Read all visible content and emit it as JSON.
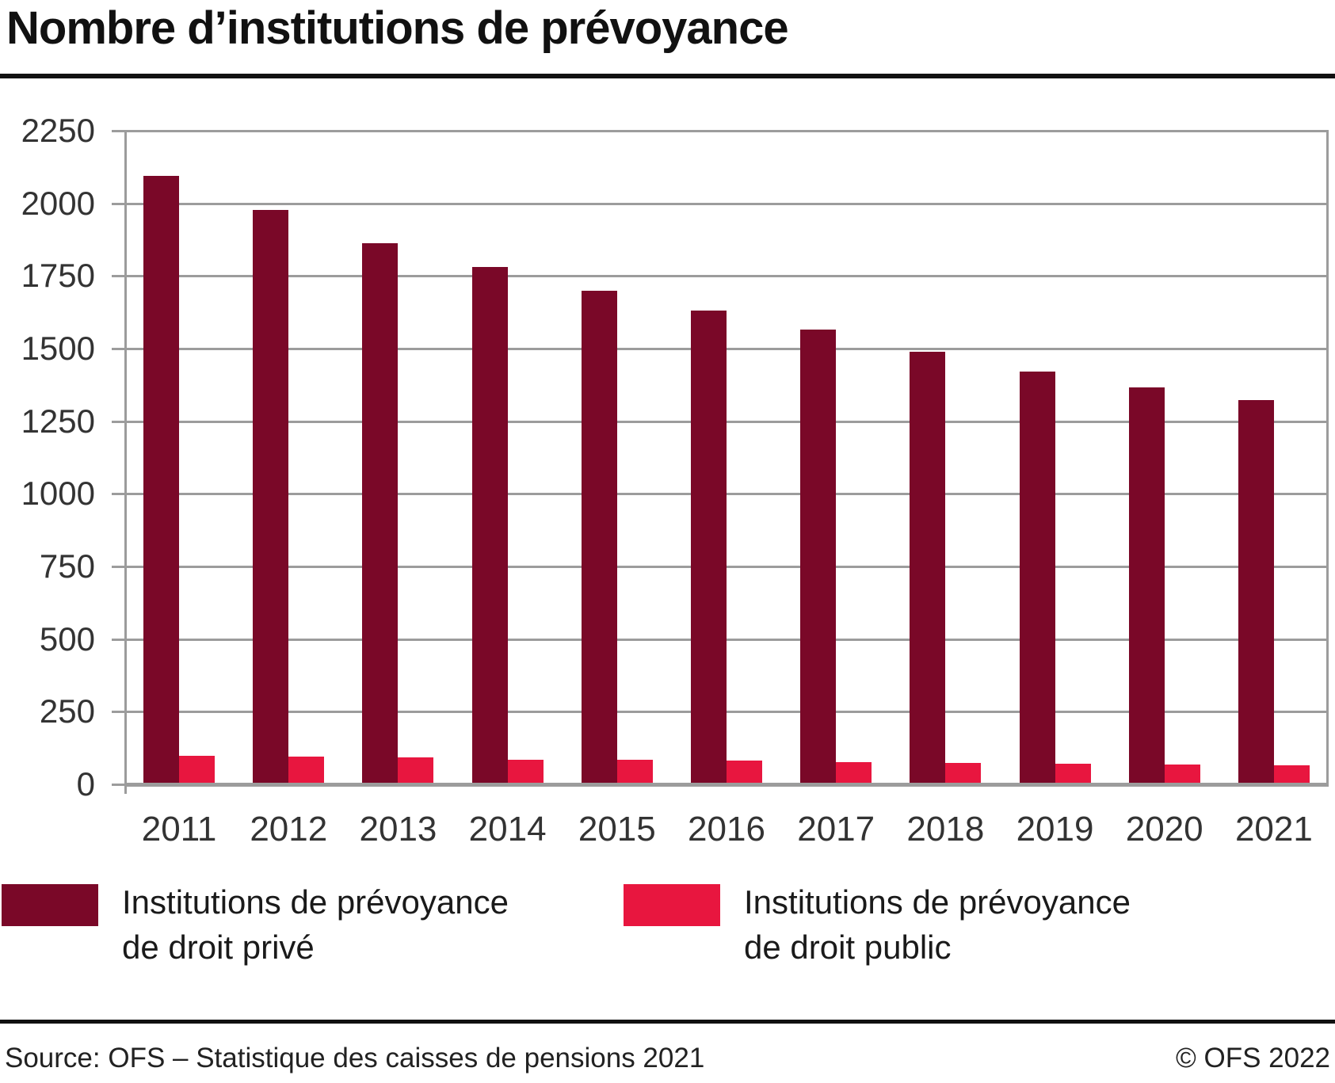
{
  "title": "Nombre d’institutions de prévoyance",
  "chart_data": {
    "type": "bar",
    "title": "Nombre d’institutions de prévoyance",
    "categories": [
      "2011",
      "2012",
      "2013",
      "2014",
      "2015",
      "2016",
      "2017",
      "2018",
      "2019",
      "2020",
      "2021"
    ],
    "series": [
      {
        "name": "Institutions de prévoyance de droit privé",
        "color": "#7a0828",
        "values": [
          2094,
          1978,
          1864,
          1781,
          1698,
          1632,
          1566,
          1489,
          1421,
          1367,
          1324
        ]
      },
      {
        "name": "Institutions de prévoyance de droit public",
        "color": "#e8163f",
        "values": [
          97,
          95,
          93,
          85,
          84,
          81,
          77,
          73,
          70,
          67,
          65
        ]
      }
    ],
    "xlabel": "",
    "ylabel": "",
    "ylim": [
      0,
      2250
    ],
    "yticks": [
      0,
      250,
      500,
      750,
      1000,
      1250,
      1500,
      1750,
      2000,
      2250
    ],
    "grid": true,
    "gridcolor": "#9c9c9c",
    "legend_position": "bottom"
  },
  "legend": {
    "items": [
      {
        "line1": "Institutions de prévoyance",
        "line2": "de droit privé",
        "color": "#7a0828"
      },
      {
        "line1": "Institutions de prévoyance",
        "line2": "de droit public",
        "color": "#e8163f"
      }
    ]
  },
  "footer": {
    "source": "Source: OFS – Statistique des caisses de pensions 2021",
    "copyright": "© OFS 2022"
  },
  "colors": {
    "private_bar": "#7a0828",
    "public_bar": "#e8163f",
    "grid": "#9c9c9c",
    "text": "#1a1a1a"
  }
}
